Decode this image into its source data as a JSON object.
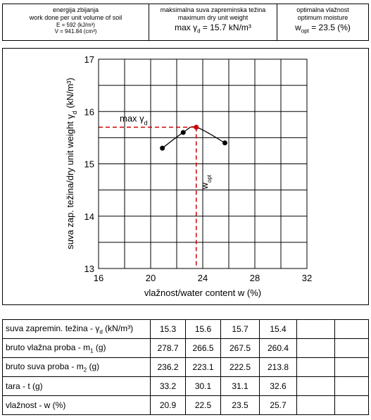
{
  "header": {
    "energy": {
      "title": "energija zbijanja",
      "subtitle": "work done per unit volume of soil",
      "E": "E = 592 (kJ/m³)",
      "V": "V = 941.84 (cm³)"
    },
    "max_weight": {
      "title": "maksimalna suva zapreminska težina",
      "subtitle": "maximum dry unit weight",
      "value": {
        "pre": "max γ",
        "sub": "d",
        "post": " = 15.7 kN/m³"
      }
    },
    "optimum": {
      "title": "optimalna vlažnost",
      "subtitle": "optimum moisture",
      "value": {
        "pre": "w",
        "sub": "opt",
        "post": " = 23.5 (%)"
      }
    }
  },
  "chart_data": {
    "type": "line",
    "x_label": "vlažnost/water content   w (%)",
    "y_label": {
      "pre": "suva zap. težina/dry unit weight γ",
      "sub": "d",
      "post": " (kN/m³)"
    },
    "annotations": {
      "max": {
        "pre": "max γ",
        "sub": "d"
      },
      "wopt": {
        "pre": "w",
        "sub": "opt"
      }
    },
    "xlim": [
      16,
      32
    ],
    "ylim": [
      13,
      17
    ],
    "xticks": [
      16,
      20,
      24,
      28,
      32
    ],
    "yticks": [
      13,
      14,
      15,
      16,
      17
    ],
    "xgrid": [
      16,
      18,
      20,
      22,
      24,
      26,
      28,
      30,
      32
    ],
    "ygrid": [
      13,
      13.5,
      14,
      14.5,
      15,
      15.5,
      16,
      16.5,
      17
    ],
    "grid": true,
    "x": [
      20.9,
      22.5,
      23.5,
      25.7
    ],
    "series": [
      {
        "color": "#000000",
        "values": [
          15.3,
          15.6,
          15.7,
          15.4
        ]
      }
    ],
    "max_color": "#cc0000"
  },
  "table": {
    "rows": [
      {
        "label": {
          "pre": "suva zapremin. težina - γ",
          "sub": "d",
          "post": " (kN/m³)"
        },
        "values": [
          15.3,
          15.6,
          15.7,
          15.4
        ]
      },
      {
        "label": {
          "pre": "bruto vlažna proba - m",
          "sub": "1",
          "post": " (g)"
        },
        "values": [
          278.7,
          266.5,
          267.5,
          260.4
        ]
      },
      {
        "label": {
          "pre": "bruto suva proba - m",
          "sub": "2",
          "post": " (g)"
        },
        "values": [
          236.2,
          223.1,
          222.5,
          213.8
        ]
      },
      {
        "label": {
          "pre": "tara - t (g)"
        },
        "values": [
          33.2,
          30.1,
          31.1,
          32.6
        ]
      },
      {
        "label": {
          "pre": "vlažnost - w (%)"
        },
        "values": [
          20.9,
          22.5,
          23.5,
          25.7
        ]
      }
    ]
  }
}
